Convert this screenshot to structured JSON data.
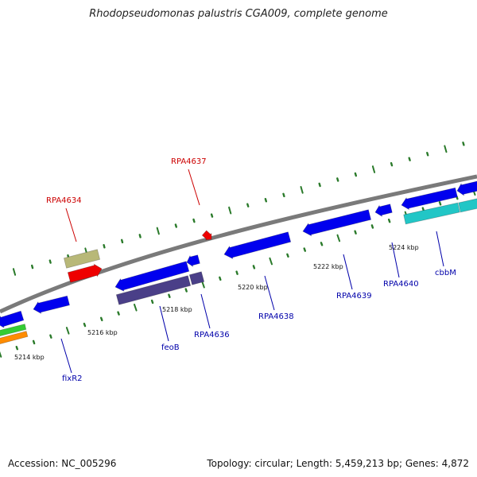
{
  "title": "Rhodopseudomonas palustris CGA009, complete genome",
  "footer": {
    "accession": "Accession: NC_005296",
    "summary": "Topology: circular; Length: 5,459,213 bp; Genes: 4,872"
  },
  "colors": {
    "backbone": "#888888",
    "tick": "#2a7a2a",
    "gene_forward": "#0000ee",
    "gene_reverse": "#1a2fd0",
    "gene_cyan": "#22c6c6",
    "gene_slate": "#4a3f88",
    "gene_khaki": "#b8b878",
    "gene_red": "#ee0000",
    "gene_green": "#33cc33",
    "gene_orange": "#ff8c00",
    "label_red": "#cc0000",
    "label_blue": "#0000aa"
  },
  "kbp_labels": [
    "5214 kbp",
    "5216 kbp",
    "5218 kbp",
    "5220 kbp",
    "5222 kbp",
    "5224 kbp"
  ],
  "gene_labels": [
    {
      "text": "RPA4634",
      "color": "label_red"
    },
    {
      "text": "RPA4637",
      "color": "label_red"
    },
    {
      "text": "fixR2",
      "color": "label_blue"
    },
    {
      "text": "feoB",
      "color": "label_blue"
    },
    {
      "text": "RPA4636",
      "color": "label_blue"
    },
    {
      "text": "RPA4638",
      "color": "label_blue"
    },
    {
      "text": "RPA4639",
      "color": "label_blue"
    },
    {
      "text": "RPA4640",
      "color": "label_blue"
    },
    {
      "text": "cbbM",
      "color": "label_blue"
    }
  ]
}
